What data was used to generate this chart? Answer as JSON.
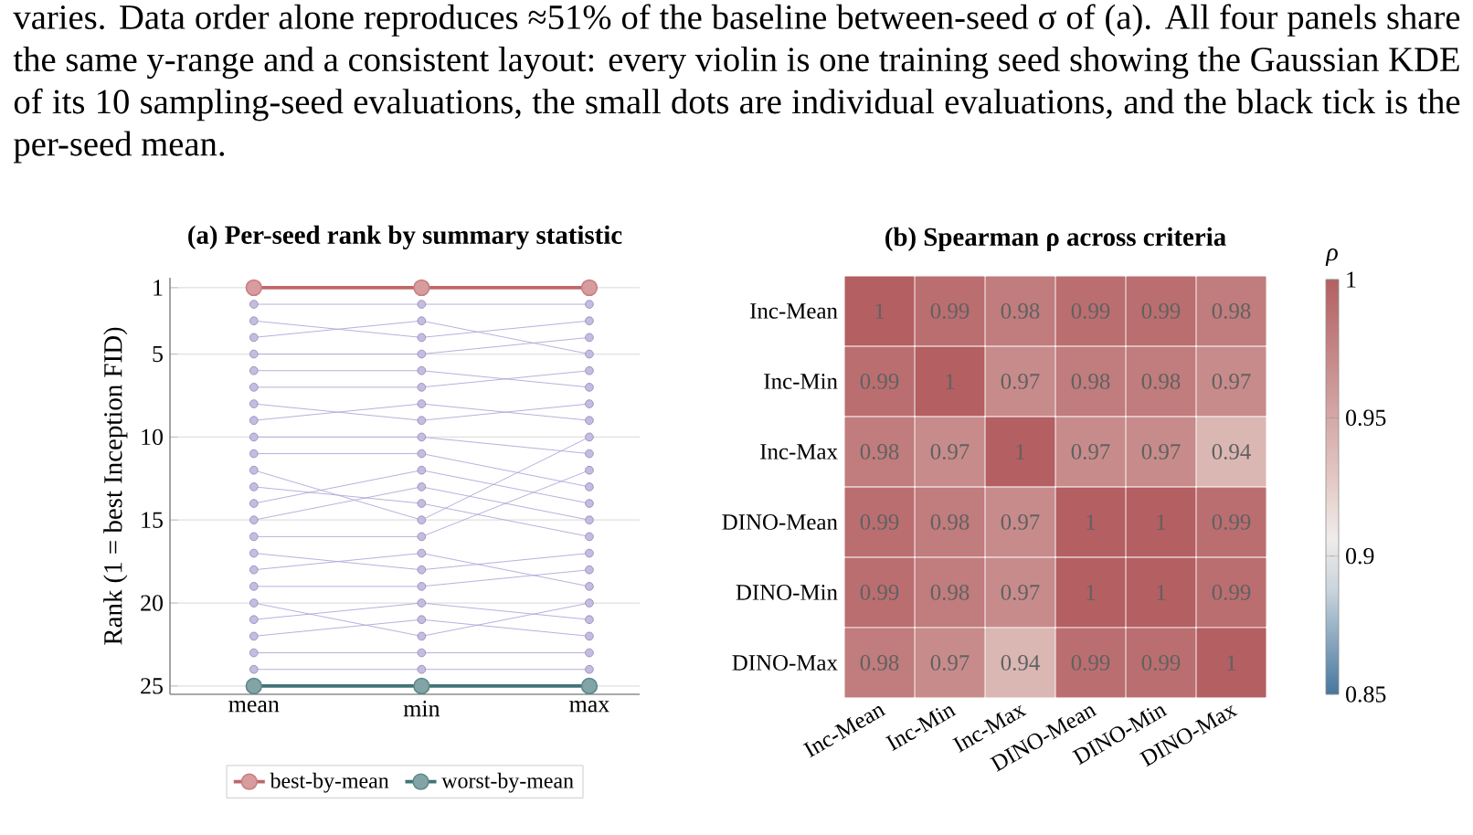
{
  "chart_data": [
    {
      "type": "line",
      "title": "(a) Per-seed rank by summary statistic",
      "ylabel": "Rank (1 = best Inception FID)",
      "categories": [
        "mean",
        "min",
        "max"
      ],
      "ylim": [
        25.5,
        0.4
      ],
      "yticks": [
        1,
        5,
        10,
        15,
        20,
        25
      ],
      "grid": "y",
      "legend": "bottom",
      "marker": "circle",
      "annotations": [
        "varies. Data order alone reproduces ≈51% of the baseline between-seed σ of (a). All four panels share the same y-range and a consistent layout: every violin is one training seed showing the Gaussian KDE of its 10 sampling-seed evaluations, the small dots are individual evaluations, and the black tick is the per-seed mean."
      ],
      "series": [
        {
          "color": "#b3a6d8",
          "values": [
            2,
            2,
            2
          ]
        },
        {
          "color": "#b3a6d8",
          "values": [
            3,
            4,
            3
          ]
        },
        {
          "color": "#b3a6d8",
          "values": [
            4,
            3,
            5
          ]
        },
        {
          "color": "#b3a6d8",
          "values": [
            5,
            5,
            4
          ]
        },
        {
          "color": "#b3a6d8",
          "values": [
            6,
            6,
            7
          ]
        },
        {
          "color": "#b3a6d8",
          "values": [
            7,
            7,
            6
          ]
        },
        {
          "color": "#b3a6d8",
          "values": [
            8,
            9,
            8
          ]
        },
        {
          "color": "#b3a6d8",
          "values": [
            9,
            8,
            9
          ]
        },
        {
          "color": "#b3a6d8",
          "values": [
            10,
            10,
            11
          ]
        },
        {
          "color": "#b3a6d8",
          "values": [
            11,
            11,
            13
          ]
        },
        {
          "color": "#b3a6d8",
          "values": [
            12,
            15,
            10
          ]
        },
        {
          "color": "#b3a6d8",
          "values": [
            13,
            14,
            16
          ]
        },
        {
          "color": "#b3a6d8",
          "values": [
            14,
            12,
            14
          ]
        },
        {
          "color": "#b3a6d8",
          "values": [
            15,
            13,
            15
          ]
        },
        {
          "color": "#b3a6d8",
          "values": [
            16,
            16,
            12
          ]
        },
        {
          "color": "#b3a6d8",
          "values": [
            17,
            18,
            17
          ]
        },
        {
          "color": "#b3a6d8",
          "values": [
            18,
            17,
            19
          ]
        },
        {
          "color": "#b3a6d8",
          "values": [
            19,
            19,
            18
          ]
        },
        {
          "color": "#b3a6d8",
          "values": [
            20,
            22,
            20
          ]
        },
        {
          "color": "#b3a6d8",
          "values": [
            21,
            20,
            21
          ]
        },
        {
          "color": "#b3a6d8",
          "values": [
            22,
            21,
            22
          ]
        },
        {
          "color": "#b3a6d8",
          "values": [
            23,
            23,
            23
          ]
        },
        {
          "color": "#b3a6d8",
          "values": [
            24,
            24,
            24
          ]
        },
        {
          "name": "best-by-mean",
          "color": "#c0676a",
          "values": [
            1,
            1,
            1
          ]
        },
        {
          "name": "worst-by-mean",
          "color": "#3f7376",
          "values": [
            25,
            25,
            25
          ]
        }
      ]
    },
    {
      "type": "heatmap",
      "title": "(b) Spearman ρ across criteria",
      "clabel": "ρ",
      "categories": [
        "Inc-Mean",
        "Inc-Min",
        "Inc-Max",
        "DINO-Mean",
        "DINO-Min",
        "DINO-Max"
      ],
      "y_categories": [
        "Inc-Mean",
        "Inc-Min",
        "Inc-Max",
        "DINO-Mean",
        "DINO-Min",
        "DINO-Max"
      ],
      "cells": [
        [
          1,
          0.99,
          0.98,
          0.99,
          0.99,
          0.98
        ],
        [
          0.99,
          1,
          0.97,
          0.98,
          0.98,
          0.97
        ],
        [
          0.98,
          0.97,
          1,
          0.97,
          0.97,
          0.94
        ],
        [
          0.99,
          0.98,
          0.97,
          1,
          1,
          0.99
        ],
        [
          0.99,
          0.98,
          0.97,
          1,
          1,
          0.99
        ],
        [
          0.98,
          0.97,
          0.94,
          0.99,
          0.99,
          1
        ]
      ],
      "clim": [
        0.85,
        1
      ],
      "cticks": [
        0.85,
        0.9,
        0.95,
        1
      ],
      "data_labels": true
    }
  ]
}
